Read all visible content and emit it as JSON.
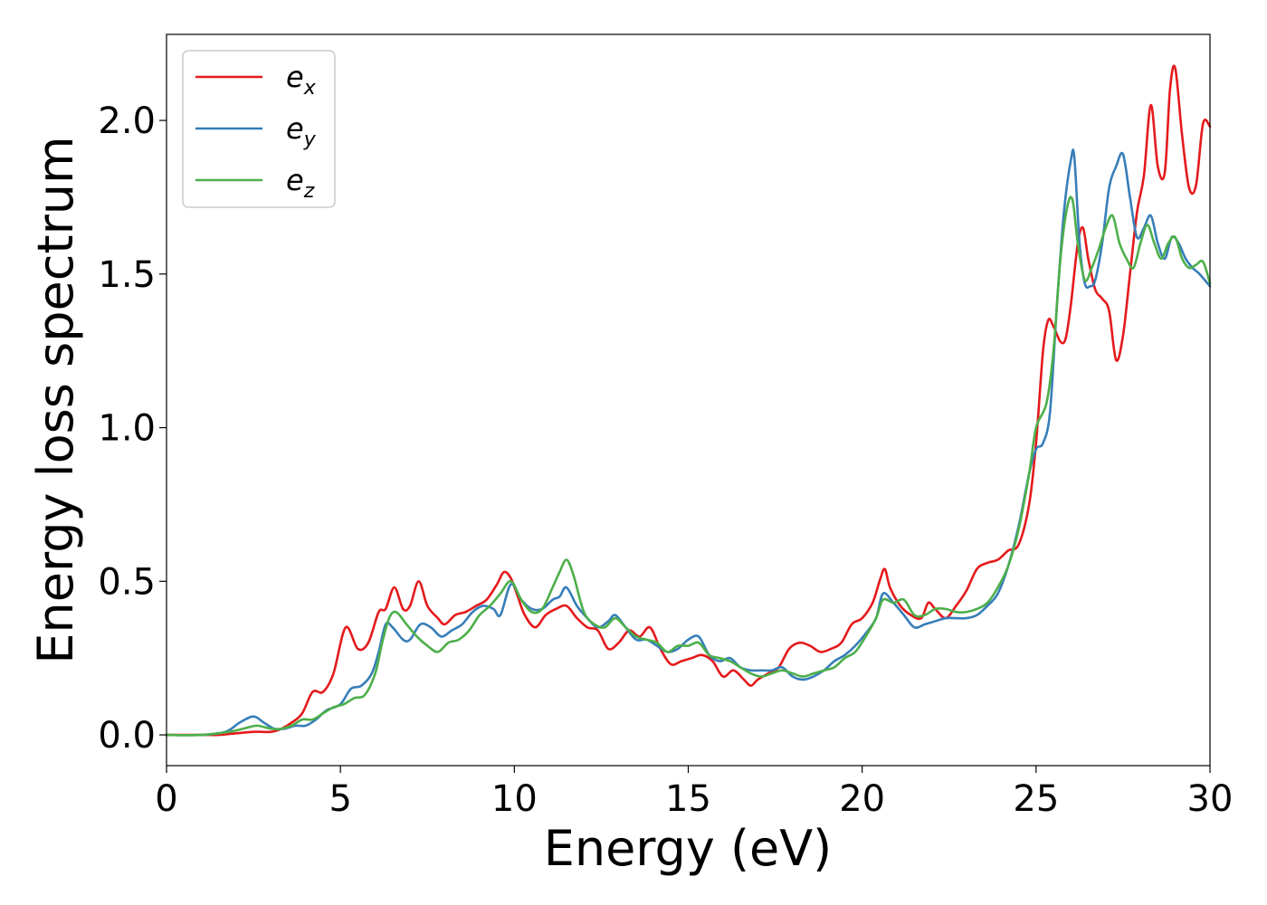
{
  "chart_data": {
    "type": "line",
    "xlabel": "Energy (eV)",
    "ylabel": "Energy loss spectrum",
    "xlim": [
      0,
      30
    ],
    "ylim": [
      -0.1,
      2.28
    ],
    "xticks": [
      0,
      5,
      10,
      15,
      20,
      25,
      30
    ],
    "xtick_labels": [
      "0",
      "5",
      "10",
      "15",
      "20",
      "25",
      "30"
    ],
    "yticks": [
      0.0,
      0.5,
      1.0,
      1.5,
      2.0
    ],
    "ytick_labels": [
      "0.0",
      "0.5",
      "1.0",
      "1.5",
      "2.0"
    ],
    "grid": false,
    "legend_position": "top-left",
    "series": [
      {
        "name": "e_x",
        "label_main": "e",
        "label_sub": "x",
        "color": "#e41a1c",
        "x": [
          0,
          1,
          1.5,
          2,
          2.5,
          3,
          3.3,
          3.6,
          3.9,
          4.2,
          4.5,
          4.8,
          5.15,
          5.5,
          5.8,
          6.1,
          6.3,
          6.55,
          6.8,
          7.0,
          7.25,
          7.5,
          7.8,
          8.0,
          8.3,
          8.6,
          8.9,
          9.2,
          9.5,
          9.7,
          9.9,
          10.1,
          10.3,
          10.6,
          10.9,
          11.2,
          11.5,
          11.8,
          12.1,
          12.4,
          12.7,
          13.0,
          13.3,
          13.6,
          13.9,
          14.2,
          14.5,
          14.8,
          15.1,
          15.4,
          15.7,
          16.0,
          16.3,
          16.6,
          16.8,
          17.0,
          17.3,
          17.6,
          17.9,
          18.2,
          18.5,
          18.8,
          19.1,
          19.4,
          19.7,
          20.0,
          20.3,
          20.5,
          20.65,
          20.8,
          21.1,
          21.4,
          21.7,
          21.9,
          22.1,
          22.4,
          22.7,
          23.0,
          23.3,
          23.6,
          23.9,
          24.2,
          24.5,
          24.8,
          25.0,
          25.2,
          25.35,
          25.5,
          25.7,
          25.85,
          26.0,
          26.2,
          26.35,
          26.5,
          26.7,
          26.9,
          27.1,
          27.3,
          27.5,
          27.7,
          27.9,
          28.1,
          28.3,
          28.5,
          28.7,
          28.85,
          29.0,
          29.2,
          29.4,
          29.6,
          29.8,
          30.0
        ],
        "y": [
          0.0,
          0.0,
          0.0,
          0.005,
          0.01,
          0.01,
          0.02,
          0.04,
          0.07,
          0.14,
          0.14,
          0.2,
          0.35,
          0.28,
          0.3,
          0.4,
          0.41,
          0.48,
          0.41,
          0.42,
          0.5,
          0.42,
          0.38,
          0.36,
          0.39,
          0.4,
          0.42,
          0.44,
          0.49,
          0.53,
          0.51,
          0.45,
          0.39,
          0.35,
          0.39,
          0.41,
          0.42,
          0.38,
          0.35,
          0.34,
          0.28,
          0.3,
          0.34,
          0.32,
          0.35,
          0.28,
          0.23,
          0.24,
          0.25,
          0.26,
          0.24,
          0.19,
          0.21,
          0.18,
          0.16,
          0.18,
          0.2,
          0.22,
          0.28,
          0.3,
          0.29,
          0.27,
          0.28,
          0.3,
          0.36,
          0.38,
          0.43,
          0.5,
          0.54,
          0.48,
          0.42,
          0.39,
          0.38,
          0.43,
          0.41,
          0.38,
          0.42,
          0.47,
          0.54,
          0.56,
          0.57,
          0.6,
          0.62,
          0.75,
          0.95,
          1.25,
          1.35,
          1.33,
          1.28,
          1.29,
          1.4,
          1.6,
          1.65,
          1.55,
          1.45,
          1.42,
          1.38,
          1.22,
          1.3,
          1.5,
          1.7,
          1.82,
          2.05,
          1.85,
          1.83,
          2.1,
          2.17,
          1.95,
          1.78,
          1.79,
          1.99,
          1.98
        ]
      },
      {
        "name": "e_y",
        "label_main": "e",
        "label_sub": "y",
        "color": "#377eb8",
        "x": [
          0,
          1,
          1.7,
          2.1,
          2.5,
          2.8,
          3.1,
          3.4,
          3.7,
          4.0,
          4.3,
          4.6,
          5.0,
          5.3,
          5.6,
          5.9,
          6.1,
          6.3,
          6.5,
          6.8,
          7.0,
          7.3,
          7.6,
          7.9,
          8.2,
          8.5,
          8.8,
          9.1,
          9.4,
          9.6,
          9.9,
          10.2,
          10.5,
          10.8,
          11.1,
          11.3,
          11.5,
          11.8,
          12.1,
          12.4,
          12.7,
          12.9,
          13.2,
          13.5,
          13.8,
          14.1,
          14.4,
          14.7,
          15.0,
          15.3,
          15.6,
          15.9,
          16.2,
          16.5,
          16.8,
          17.1,
          17.4,
          17.7,
          18.0,
          18.3,
          18.6,
          18.9,
          19.2,
          19.5,
          19.8,
          20.1,
          20.4,
          20.6,
          20.9,
          21.2,
          21.5,
          21.8,
          22.1,
          22.4,
          22.7,
          23.0,
          23.3,
          23.6,
          23.9,
          24.2,
          24.5,
          24.8,
          25.0,
          25.2,
          25.4,
          25.6,
          25.8,
          26.0,
          26.1,
          26.25,
          26.4,
          26.55,
          26.7,
          26.9,
          27.1,
          27.3,
          27.5,
          27.7,
          27.9,
          28.1,
          28.3,
          28.5,
          28.7,
          28.9,
          29.1,
          29.3,
          29.5,
          29.7,
          30.0
        ],
        "y": [
          0.0,
          0.0,
          0.01,
          0.04,
          0.06,
          0.04,
          0.02,
          0.02,
          0.03,
          0.03,
          0.05,
          0.08,
          0.1,
          0.15,
          0.16,
          0.2,
          0.27,
          0.36,
          0.35,
          0.31,
          0.31,
          0.36,
          0.35,
          0.32,
          0.34,
          0.36,
          0.4,
          0.42,
          0.41,
          0.39,
          0.49,
          0.44,
          0.41,
          0.41,
          0.44,
          0.45,
          0.48,
          0.42,
          0.38,
          0.35,
          0.37,
          0.39,
          0.35,
          0.31,
          0.31,
          0.29,
          0.27,
          0.28,
          0.31,
          0.32,
          0.26,
          0.24,
          0.25,
          0.22,
          0.21,
          0.21,
          0.21,
          0.22,
          0.19,
          0.18,
          0.19,
          0.21,
          0.24,
          0.26,
          0.29,
          0.33,
          0.38,
          0.46,
          0.43,
          0.39,
          0.35,
          0.36,
          0.37,
          0.38,
          0.38,
          0.38,
          0.39,
          0.42,
          0.46,
          0.55,
          0.68,
          0.85,
          0.93,
          0.95,
          1.05,
          1.4,
          1.7,
          1.87,
          1.88,
          1.6,
          1.47,
          1.46,
          1.48,
          1.6,
          1.78,
          1.85,
          1.89,
          1.75,
          1.62,
          1.65,
          1.69,
          1.6,
          1.55,
          1.62,
          1.6,
          1.55,
          1.52,
          1.5,
          1.46
        ]
      },
      {
        "name": "e_z",
        "label_main": "e",
        "label_sub": "z",
        "color": "#4daf4a",
        "x": [
          0,
          1,
          1.8,
          2.2,
          2.6,
          3.0,
          3.3,
          3.6,
          3.9,
          4.2,
          4.5,
          4.8,
          5.1,
          5.4,
          5.7,
          6.0,
          6.2,
          6.4,
          6.6,
          6.9,
          7.2,
          7.5,
          7.8,
          8.1,
          8.4,
          8.7,
          9.0,
          9.3,
          9.6,
          9.9,
          10.2,
          10.5,
          10.8,
          11.1,
          11.3,
          11.5,
          11.7,
          12.0,
          12.3,
          12.6,
          12.9,
          13.2,
          13.5,
          13.8,
          14.1,
          14.4,
          14.7,
          15.0,
          15.3,
          15.6,
          15.9,
          16.2,
          16.5,
          16.8,
          17.1,
          17.4,
          17.7,
          18.0,
          18.3,
          18.6,
          18.9,
          19.2,
          19.5,
          19.8,
          20.1,
          20.4,
          20.6,
          20.9,
          21.2,
          21.5,
          21.8,
          22.1,
          22.4,
          22.7,
          23.0,
          23.3,
          23.6,
          23.9,
          24.2,
          24.5,
          24.8,
          25.0,
          25.3,
          25.5,
          25.7,
          25.9,
          26.05,
          26.2,
          26.4,
          26.6,
          26.8,
          27.0,
          27.2,
          27.4,
          27.6,
          27.8,
          28.0,
          28.2,
          28.4,
          28.6,
          28.8,
          29.0,
          29.2,
          29.4,
          29.6,
          29.8,
          30.0
        ],
        "y": [
          0.0,
          0.0,
          0.01,
          0.02,
          0.03,
          0.02,
          0.02,
          0.03,
          0.05,
          0.05,
          0.07,
          0.09,
          0.1,
          0.12,
          0.13,
          0.2,
          0.3,
          0.38,
          0.4,
          0.36,
          0.32,
          0.29,
          0.27,
          0.3,
          0.31,
          0.34,
          0.39,
          0.42,
          0.46,
          0.5,
          0.44,
          0.4,
          0.41,
          0.48,
          0.53,
          0.57,
          0.52,
          0.4,
          0.36,
          0.35,
          0.38,
          0.35,
          0.32,
          0.31,
          0.3,
          0.27,
          0.29,
          0.29,
          0.3,
          0.26,
          0.25,
          0.24,
          0.22,
          0.2,
          0.19,
          0.2,
          0.21,
          0.2,
          0.19,
          0.2,
          0.21,
          0.22,
          0.25,
          0.27,
          0.32,
          0.38,
          0.44,
          0.43,
          0.44,
          0.39,
          0.39,
          0.41,
          0.41,
          0.4,
          0.4,
          0.41,
          0.43,
          0.48,
          0.55,
          0.67,
          0.85,
          1.0,
          1.08,
          1.25,
          1.55,
          1.72,
          1.74,
          1.6,
          1.48,
          1.52,
          1.58,
          1.65,
          1.69,
          1.6,
          1.55,
          1.52,
          1.6,
          1.66,
          1.6,
          1.55,
          1.6,
          1.62,
          1.55,
          1.52,
          1.53,
          1.54,
          1.47
        ]
      }
    ]
  }
}
